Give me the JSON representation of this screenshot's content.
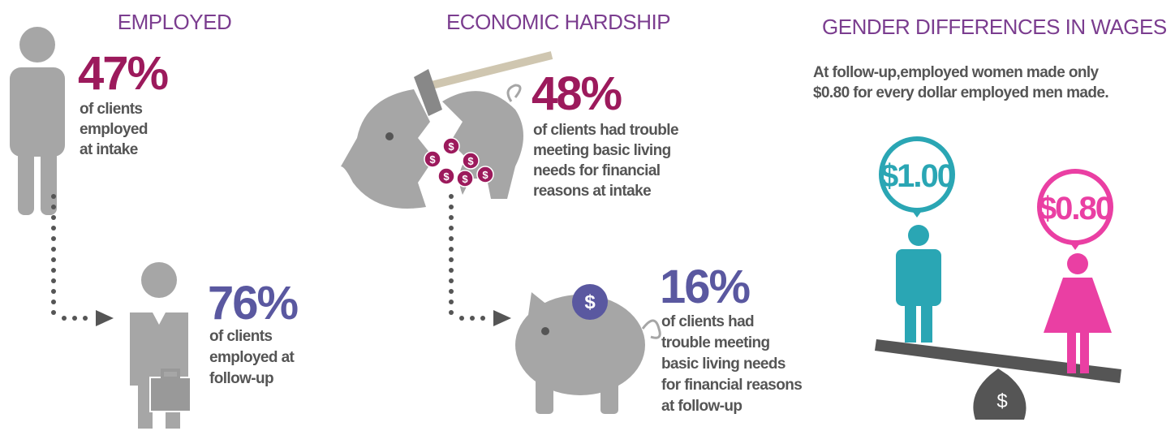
{
  "employed": {
    "title": "EMPLOYED",
    "intake": {
      "stat": "47%",
      "lines": [
        "of clients",
        "employed",
        "at intake"
      ]
    },
    "followup": {
      "stat": "76%",
      "lines": [
        "of clients",
        "employed at",
        "follow-up"
      ]
    }
  },
  "hardship": {
    "title": "ECONOMIC HARDSHIP",
    "intake": {
      "stat": "48%",
      "lines": [
        "of clients had trouble",
        "meeting basic living",
        "needs for financial",
        "reasons at intake"
      ]
    },
    "followup": {
      "stat": "16%",
      "lines": [
        "of clients had",
        "trouble meeting",
        "basic living needs",
        "for financial reasons",
        "at follow-up"
      ]
    },
    "coin_symbol": "$"
  },
  "wages": {
    "title": "GENDER DIFFERENCES IN WAGES",
    "note_lines": [
      "At follow-up,employed women made only",
      "$0.80 for every dollar employed men made."
    ],
    "men": "$1.00",
    "women": "$0.80",
    "bag_symbol": "$"
  }
}
